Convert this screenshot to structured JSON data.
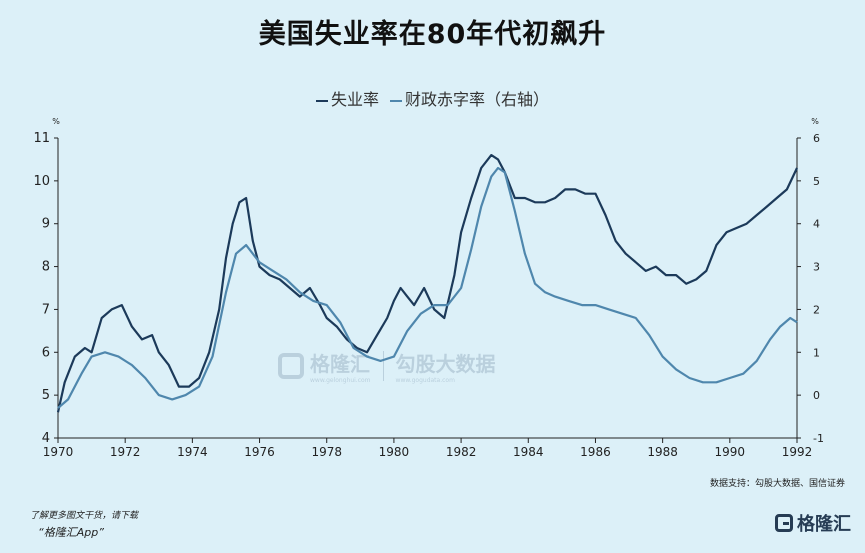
{
  "title": "美国失业率在80年代初飙升",
  "legend": {
    "items": [
      {
        "label": "失业率",
        "color": "#1c3a5a"
      },
      {
        "label": "财政赤字率（右轴）",
        "color": "#4f87ad"
      }
    ]
  },
  "source": "数据支持：勾股大数据、国信证券",
  "promo": {
    "line1": "了解更多图文干货，请下载",
    "line2": "“格隆汇App”"
  },
  "brand": "格隆汇",
  "watermark": {
    "brand": "格隆汇",
    "brand_sub": "www.gelonghui.com",
    "product": "勾股大数据",
    "product_sub": "www.gogudata.com"
  },
  "chart_data": {
    "type": "line",
    "title": "美国失业率在80年代初飙升",
    "xlim": [
      1970,
      1992
    ],
    "x_ticks": [
      1970,
      1972,
      1974,
      1976,
      1978,
      1980,
      1982,
      1984,
      1986,
      1988,
      1990,
      1992
    ],
    "y_left": {
      "unit": "%",
      "lim": [
        4,
        11
      ],
      "ticks": [
        4,
        5,
        6,
        7,
        8,
        9,
        10,
        11
      ]
    },
    "y_right": {
      "unit": "%",
      "lim": [
        -1,
        6
      ],
      "ticks": [
        -1,
        0,
        1,
        2,
        3,
        4,
        5,
        6
      ]
    },
    "grid": false,
    "legend_position": "top-center",
    "series": [
      {
        "name": "失业率",
        "axis": "left",
        "color": "#1c3a5a",
        "x": [
          1970.0,
          1970.2,
          1970.5,
          1970.8,
          1971.0,
          1971.3,
          1971.6,
          1971.9,
          1972.2,
          1972.5,
          1972.8,
          1973.0,
          1973.3,
          1973.6,
          1973.9,
          1974.2,
          1974.5,
          1974.8,
          1975.0,
          1975.2,
          1975.4,
          1975.6,
          1975.8,
          1976.0,
          1976.3,
          1976.6,
          1976.9,
          1977.2,
          1977.5,
          1977.8,
          1978.0,
          1978.3,
          1978.6,
          1978.9,
          1979.2,
          1979.5,
          1979.8,
          1980.0,
          1980.2,
          1980.4,
          1980.6,
          1980.9,
          1981.2,
          1981.5,
          1981.8,
          1982.0,
          1982.3,
          1982.6,
          1982.9,
          1983.1,
          1983.3,
          1983.6,
          1983.9,
          1984.2,
          1984.5,
          1984.8,
          1985.1,
          1985.4,
          1985.7,
          1986.0,
          1986.3,
          1986.6,
          1986.9,
          1987.2,
          1987.5,
          1987.8,
          1988.1,
          1988.4,
          1988.7,
          1989.0,
          1989.3,
          1989.6,
          1989.9,
          1990.2,
          1990.5,
          1990.8,
          1991.1,
          1991.4,
          1991.7,
          1992.0
        ],
        "values": [
          4.6,
          5.3,
          5.9,
          6.1,
          6.0,
          6.8,
          7.0,
          7.1,
          6.6,
          6.3,
          6.4,
          6.0,
          5.7,
          5.2,
          5.2,
          5.4,
          6.0,
          7.0,
          8.2,
          9.0,
          9.5,
          9.6,
          8.6,
          8.0,
          7.8,
          7.7,
          7.5,
          7.3,
          7.5,
          7.1,
          6.8,
          6.6,
          6.3,
          6.1,
          6.0,
          6.4,
          6.8,
          7.2,
          7.5,
          7.3,
          7.1,
          7.5,
          7.0,
          6.8,
          7.8,
          8.8,
          9.6,
          10.3,
          10.6,
          10.5,
          10.2,
          9.6,
          9.6,
          9.5,
          9.5,
          9.6,
          9.8,
          9.8,
          9.7,
          9.7,
          9.2,
          8.6,
          8.3,
          8.1,
          7.9,
          8.0,
          7.8,
          7.8,
          7.6,
          7.7,
          7.9,
          8.5,
          8.8,
          8.9,
          9.0,
          9.2,
          9.4,
          9.6,
          9.8,
          10.3
        ]
      },
      {
        "name": "财政赤字率（右轴）",
        "axis": "right",
        "color": "#4f87ad",
        "x": [
          1970.0,
          1970.3,
          1970.7,
          1971.0,
          1971.4,
          1971.8,
          1972.2,
          1972.6,
          1973.0,
          1973.4,
          1973.8,
          1974.2,
          1974.6,
          1975.0,
          1975.3,
          1975.6,
          1976.0,
          1976.4,
          1976.8,
          1977.2,
          1977.6,
          1978.0,
          1978.4,
          1978.8,
          1979.2,
          1979.6,
          1980.0,
          1980.4,
          1980.8,
          1981.2,
          1981.6,
          1982.0,
          1982.3,
          1982.6,
          1982.9,
          1983.1,
          1983.3,
          1983.6,
          1983.9,
          1984.2,
          1984.5,
          1984.8,
          1985.2,
          1985.6,
          1986.0,
          1986.4,
          1986.8,
          1987.2,
          1987.6,
          1988.0,
          1988.4,
          1988.8,
          1989.2,
          1989.6,
          1990.0,
          1990.4,
          1990.8,
          1991.2,
          1991.5,
          1991.8,
          1992.0
        ],
        "values": [
          -0.3,
          -0.1,
          0.5,
          0.9,
          1.0,
          0.9,
          0.7,
          0.4,
          0.0,
          -0.1,
          0.0,
          0.2,
          0.9,
          2.4,
          3.3,
          3.5,
          3.1,
          2.9,
          2.7,
          2.4,
          2.2,
          2.1,
          1.7,
          1.1,
          0.9,
          0.8,
          0.9,
          1.5,
          1.9,
          2.1,
          2.1,
          2.5,
          3.4,
          4.4,
          5.1,
          5.3,
          5.2,
          4.3,
          3.3,
          2.6,
          2.4,
          2.3,
          2.2,
          2.1,
          2.1,
          2.0,
          1.9,
          1.8,
          1.4,
          0.9,
          0.6,
          0.4,
          0.3,
          0.3,
          0.4,
          0.5,
          0.8,
          1.3,
          1.6,
          1.8,
          1.7
        ]
      }
    ]
  }
}
